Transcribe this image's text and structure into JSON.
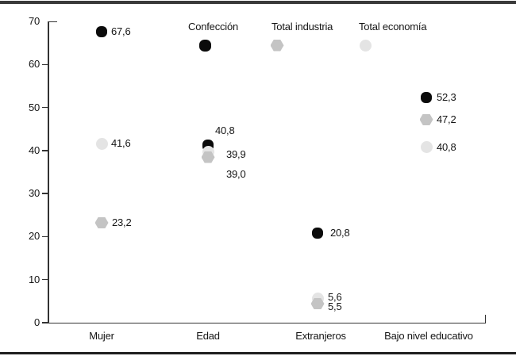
{
  "chart_data": {
    "type": "scatter",
    "title": "",
    "categories": [
      "Mujer",
      "Edad",
      "Extranjeros",
      "Bajo nivel educativo"
    ],
    "series": [
      {
        "name": "Confección",
        "marker": "black-rounded-dot",
        "color": "#0b0b0b",
        "values": [
          67.6,
          40.8,
          20.8,
          52.3
        ],
        "labels": [
          "67,6",
          "40,8",
          "20,8",
          "52,3"
        ]
      },
      {
        "name": "Total economía",
        "marker": "light-gray-circle",
        "color": "#e4e4e4",
        "values": [
          41.6,
          39.9,
          5.6,
          40.8
        ],
        "labels": [
          "41,6",
          "39,9",
          "5,6",
          "40,8"
        ]
      },
      {
        "name": "Total industria",
        "marker": "medium-gray-hexagon",
        "color": "#c4c4c4",
        "values": [
          23.2,
          39.0,
          5.5,
          47.2
        ],
        "labels": [
          "23,2",
          "39,0",
          "5,5",
          "47,2"
        ]
      }
    ],
    "legend_items": [
      {
        "label": "Confección",
        "marker": "black-rounded-dot",
        "color": "#0b0b0b"
      },
      {
        "label": "Total industria",
        "marker": "medium-gray-hexagon",
        "color": "#c4c4c4"
      },
      {
        "label": "Total economía",
        "marker": "light-gray-circle",
        "color": "#e4e4e4"
      }
    ],
    "legend_position": "top",
    "grid": false,
    "ylim": [
      0,
      70
    ],
    "yticks": [
      0,
      10,
      20,
      30,
      40,
      50,
      60,
      70
    ],
    "decimal_separator": ",",
    "axis_color": "#333333",
    "text_color": "#151515"
  }
}
